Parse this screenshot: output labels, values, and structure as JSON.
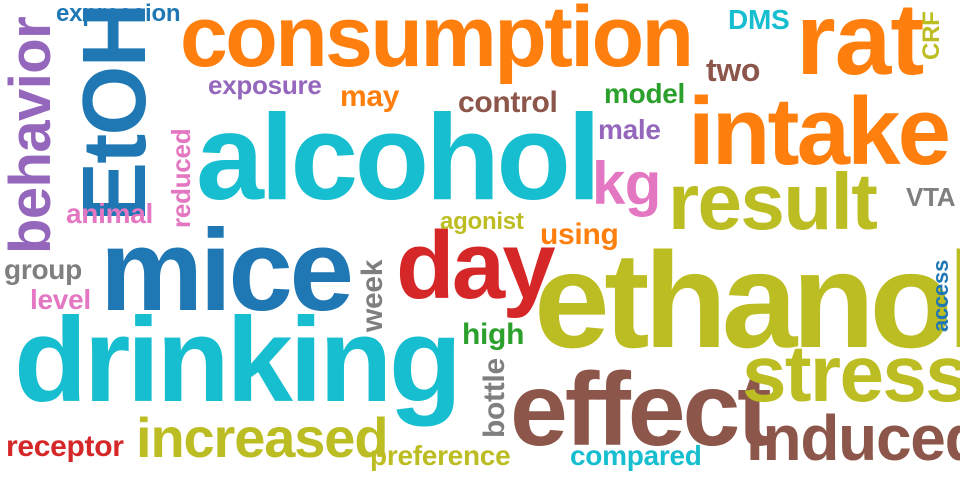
{
  "words": {
    "consumption": "consumption",
    "alcohol": "alcohol",
    "ethanol": "ethanol",
    "mice": "mice",
    "drinking": "drinking",
    "intake": "intake",
    "rat": "rat",
    "result": "result",
    "day": "day",
    "effect": "effect",
    "stress": "stress",
    "induced": "induced",
    "increased": "increased",
    "EtOH": "EtOH",
    "behavior": "behavior",
    "expression": "expression",
    "exposure": "exposure",
    "may": "may",
    "control": "control",
    "model": "model",
    "two": "two",
    "DMS": "DMS",
    "CRF": "CRF",
    "male": "male",
    "kg": "kg",
    "VTA": "VTA",
    "reduced": "reduced",
    "animal": "animal",
    "agonist": "agonist",
    "using": "using",
    "group": "group",
    "level": "level",
    "week": "week",
    "high": "high",
    "bottle": "bottle",
    "access": "access",
    "receptor": "receptor",
    "preference": "preference",
    "compared": "compared"
  },
  "colors": {
    "blue": "#1f77b4",
    "cyan": "#17becf",
    "orange": "#ff7f0e",
    "olive": "#bcbd22",
    "brown": "#8c564b",
    "red": "#d62728",
    "purple": "#9467bd",
    "pink": "#e377c2",
    "gray": "#7f7f7f",
    "green": "#2ca02c"
  }
}
